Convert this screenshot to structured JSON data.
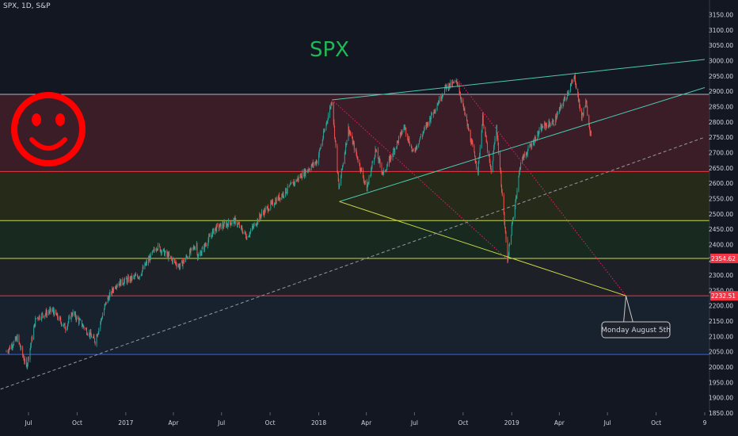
{
  "header": {
    "symbol_line": "SPX, 1D, S&P"
  },
  "title": "SPX",
  "chart_data": {
    "type": "candlestick",
    "symbol": "SPX",
    "interval": "1D",
    "exchange": "S&P",
    "ylim": [
      1820,
      3175
    ],
    "y_ticks": [
      1850,
      1900,
      1950,
      2000,
      2050,
      2100,
      2150,
      2200,
      2250,
      2300,
      2350,
      2400,
      2450,
      2500,
      2550,
      2600,
      2650,
      2700,
      2750,
      2800,
      2850,
      2900,
      2950,
      3000,
      3050,
      3100,
      3150
    ],
    "x_ticks": [
      {
        "label": "Jul",
        "date": "2016-07-01"
      },
      {
        "label": "Oct",
        "date": "2016-10-01"
      },
      {
        "label": "2017",
        "date": "2017-01-01"
      },
      {
        "label": "Apr",
        "date": "2017-04-01"
      },
      {
        "label": "Jul",
        "date": "2017-07-01"
      },
      {
        "label": "Oct",
        "date": "2017-10-01"
      },
      {
        "label": "2018",
        "date": "2018-01-01"
      },
      {
        "label": "Apr",
        "date": "2018-04-01"
      },
      {
        "label": "Jul",
        "date": "2018-07-01"
      },
      {
        "label": "Oct",
        "date": "2018-10-01"
      },
      {
        "label": "2019",
        "date": "2019-01-01"
      },
      {
        "label": "Apr",
        "date": "2019-04-01"
      },
      {
        "label": "Jul",
        "date": "2019-07-01"
      },
      {
        "label": "Oct",
        "date": "2019-10-01"
      },
      {
        "label": "9",
        "date": "2020-01-01"
      }
    ],
    "price_series": [
      [
        "2016-05-20",
        2050
      ],
      [
        "2016-06-10",
        2095
      ],
      [
        "2016-06-27",
        2000
      ],
      [
        "2016-07-15",
        2160
      ],
      [
        "2016-08-15",
        2185
      ],
      [
        "2016-09-09",
        2128
      ],
      [
        "2016-09-22",
        2177
      ],
      [
        "2016-11-04",
        2085
      ],
      [
        "2016-11-25",
        2213
      ],
      [
        "2016-12-13",
        2270
      ],
      [
        "2017-01-26",
        2298
      ],
      [
        "2017-03-01",
        2395
      ],
      [
        "2017-04-13",
        2328
      ],
      [
        "2017-05-15",
        2402
      ],
      [
        "2017-05-17",
        2357
      ],
      [
        "2017-06-19",
        2453
      ],
      [
        "2017-07-27",
        2477
      ],
      [
        "2017-08-18",
        2425
      ],
      [
        "2017-09-15",
        2500
      ],
      [
        "2017-10-31",
        2575
      ],
      [
        "2017-11-29",
        2626
      ],
      [
        "2017-12-29",
        2673
      ],
      [
        "2018-01-26",
        2872
      ],
      [
        "2018-02-08",
        2581
      ],
      [
        "2018-02-26",
        2779
      ],
      [
        "2018-04-02",
        2581
      ],
      [
        "2018-04-18",
        2708
      ],
      [
        "2018-05-03",
        2629
      ],
      [
        "2018-06-12",
        2786
      ],
      [
        "2018-06-28",
        2699
      ],
      [
        "2018-08-29",
        2914
      ],
      [
        "2018-09-20",
        2930
      ],
      [
        "2018-10-29",
        2641
      ],
      [
        "2018-11-07",
        2813
      ],
      [
        "2018-11-23",
        2633
      ],
      [
        "2018-12-03",
        2790
      ],
      [
        "2018-12-24",
        2351
      ],
      [
        "2019-01-18",
        2670
      ],
      [
        "2019-02-28",
        2784
      ],
      [
        "2019-03-22",
        2800
      ],
      [
        "2019-04-30",
        2946
      ],
      [
        "2019-05-13",
        2812
      ],
      [
        "2019-05-21",
        2864
      ],
      [
        "2019-05-31",
        2752
      ]
    ],
    "horizontal_levels": [
      {
        "price": 2890,
        "color": "#b2b5be"
      },
      {
        "price": 2638,
        "color": "#f23645"
      },
      {
        "price": 2478,
        "color": "#c8d648"
      },
      {
        "price": 2354.62,
        "color": "#c8d648"
      },
      {
        "price": 2232.51,
        "color": "#f23645"
      },
      {
        "price": 2041,
        "color": "#2962ff"
      }
    ],
    "zones": [
      {
        "from": 2638,
        "to": 2890,
        "color": "#3a1d26"
      },
      {
        "from": 2478,
        "to": 2638,
        "color": "#262a19"
      },
      {
        "from": 2354.62,
        "to": 2478,
        "color": "#182a1f"
      },
      {
        "from": 2232.51,
        "to": 2354.62,
        "color": "#1d2027"
      },
      {
        "from": 2041,
        "to": 2232.51,
        "color": "#17222e"
      }
    ],
    "trendlines": [
      {
        "from": [
          "2018-01-26",
          2872
        ],
        "to": [
          "2020-01-01",
          3004
        ],
        "color": "#4ccab2",
        "style": "solid"
      },
      {
        "from": [
          "2018-02-09",
          2540
        ],
        "to": [
          "2020-01-01",
          2912
        ],
        "color": "#4ccab2",
        "style": "solid"
      },
      {
        "from": [
          "2018-02-09",
          2540
        ],
        "to": [
          "2019-08-05",
          2232.51
        ],
        "color": "#c8d648",
        "style": "solid"
      },
      {
        "from": [
          "2018-01-26",
          2872
        ],
        "to": [
          "2018-12-24",
          2351
        ],
        "color": "#e91e63",
        "style": "dotted"
      },
      {
        "from": [
          "2018-09-20",
          2940
        ],
        "to": [
          "2019-08-05",
          2232.51
        ],
        "color": "#e91e63",
        "style": "dotted"
      },
      {
        "from": [
          "2016-03-01",
          1885
        ],
        "to": [
          "2020-01-01",
          2750
        ],
        "color": "#9598a1",
        "style": "dashed"
      }
    ],
    "price_labels": [
      {
        "text": "2354.62",
        "price": 2354.62
      },
      {
        "text": "2232.51",
        "price": 2232.51
      }
    ],
    "callout": {
      "text": "Monday August 5th",
      "anchor": [
        "2019-08-05",
        2232.51
      ]
    },
    "smiley": {
      "color": "#ff0000"
    },
    "colors": {
      "up": "#26a69a",
      "down": "#ef5350",
      "background": "#131722",
      "axis_text": "#d1d4dc",
      "title": "#1db954"
    }
  }
}
